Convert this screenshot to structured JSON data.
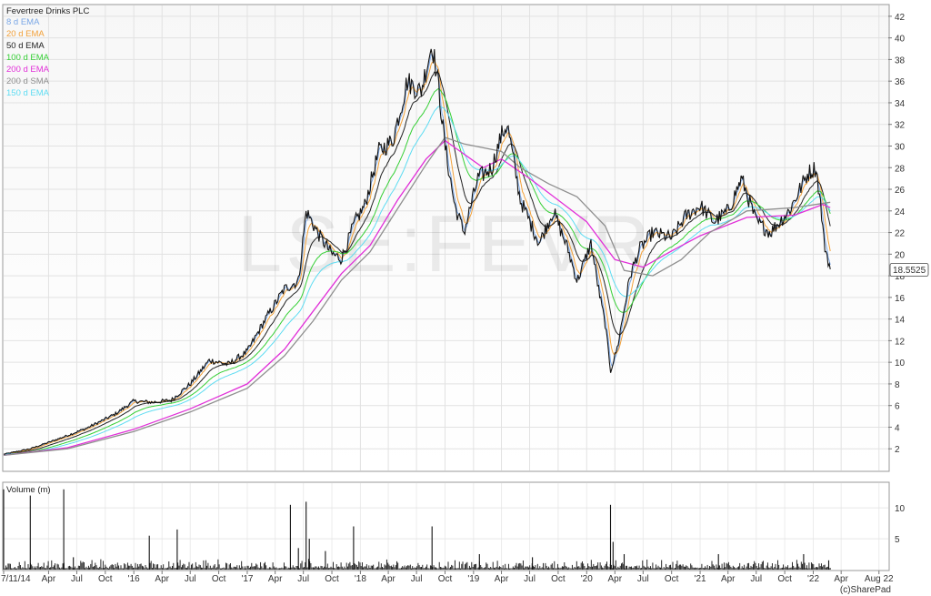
{
  "chart_data": [
    {
      "type": "line",
      "title": "Fevertree Drinks PLC",
      "watermark": "LSE:FEVR",
      "ylim": [
        0,
        43
      ],
      "y_ticks": [
        "2",
        "4",
        "6",
        "8",
        "10",
        "12",
        "14",
        "16",
        "18",
        "20",
        "22",
        "24",
        "26",
        "28",
        "30",
        "32",
        "34",
        "36",
        "38",
        "40",
        "42"
      ],
      "last_price_label": "18.5525",
      "last_price": 18.5525,
      "grid": true,
      "legend_position": "top-left",
      "legend": [
        {
          "label": "8 d EMA",
          "color": "#7aa7e6"
        },
        {
          "label": "20 d EMA",
          "color": "#f2a13a"
        },
        {
          "label": "50 d EMA",
          "color": "#222222"
        },
        {
          "label": "100 d EMA",
          "color": "#35cf35"
        },
        {
          "label": "200 d EMA",
          "color": "#e12fd8"
        },
        {
          "label": "200 d SMA",
          "color": "#8f8f8f"
        },
        {
          "label": "150 d EMA",
          "color": "#5ddcf2"
        }
      ],
      "x_ticks": [
        "7/11/14",
        "Apr",
        "Jul",
        "Oct",
        "'16",
        "Apr",
        "Jul",
        "Oct",
        "'17",
        "Apr",
        "Jul",
        "Oct",
        "'18",
        "Apr",
        "Jul",
        "Oct",
        "'19",
        "Apr",
        "Jul",
        "Oct",
        "'20",
        "Apr",
        "Jul",
        "Oct",
        "'21",
        "Apr",
        "Jul",
        "Oct",
        "'22",
        "Apr",
        "Aug 22"
      ],
      "x_range": [
        "2014-11-07",
        "2022-08-31"
      ],
      "series": [
        {
          "name": "Fevertree Drinks PLC",
          "color": "#111111",
          "points": [
            [
              "2014-11-07",
              1.5
            ],
            [
              "2015-02-01",
              2.0
            ],
            [
              "2015-05-01",
              2.9
            ],
            [
              "2015-08-01",
              3.9
            ],
            [
              "2015-11-01",
              5.2
            ],
            [
              "2015-12-31",
              6.4
            ],
            [
              "2016-03-01",
              6.3
            ],
            [
              "2016-05-01",
              6.5
            ],
            [
              "2016-07-01",
              8.0
            ],
            [
              "2016-09-01",
              10.2
            ],
            [
              "2016-11-01",
              9.8
            ],
            [
              "2017-01-01",
              11.0
            ],
            [
              "2017-03-01",
              14.0
            ],
            [
              "2017-05-01",
              16.8
            ],
            [
              "2017-06-15",
              17.5
            ],
            [
              "2017-07-10",
              24.0
            ],
            [
              "2017-08-15",
              22.0
            ],
            [
              "2017-10-01",
              20.0
            ],
            [
              "2017-11-01",
              19.6
            ],
            [
              "2017-12-15",
              23.0
            ],
            [
              "2018-01-15",
              24.5
            ],
            [
              "2018-03-01",
              29.5
            ],
            [
              "2018-04-15",
              30.5
            ],
            [
              "2018-06-01",
              36.0
            ],
            [
              "2018-07-15",
              35.0
            ],
            [
              "2018-08-20",
              39.5
            ],
            [
              "2018-09-10",
              35.5
            ],
            [
              "2018-10-01",
              30.0
            ],
            [
              "2018-11-01",
              24.5
            ],
            [
              "2018-12-01",
              22.0
            ],
            [
              "2019-01-15",
              27.0
            ],
            [
              "2019-03-01",
              28.0
            ],
            [
              "2019-04-01",
              31.0
            ],
            [
              "2019-04-20",
              32.0
            ],
            [
              "2019-06-01",
              25.0
            ],
            [
              "2019-08-01",
              21.0
            ],
            [
              "2019-09-15",
              24.0
            ],
            [
              "2019-11-01",
              20.5
            ],
            [
              "2019-12-01",
              17.5
            ],
            [
              "2020-01-15",
              21.0
            ],
            [
              "2020-02-10",
              16.5
            ],
            [
              "2020-03-01",
              13.5
            ],
            [
              "2020-03-18",
              9.2
            ],
            [
              "2020-04-10",
              11.5
            ],
            [
              "2020-05-20",
              18.0
            ],
            [
              "2020-06-20",
              20.5
            ],
            [
              "2020-08-01",
              22.0
            ],
            [
              "2020-10-01",
              21.5
            ],
            [
              "2020-11-15",
              23.5
            ],
            [
              "2021-01-01",
              24.5
            ],
            [
              "2021-02-15",
              23.0
            ],
            [
              "2021-04-01",
              24.0
            ],
            [
              "2021-05-15",
              27.0
            ],
            [
              "2021-07-01",
              23.0
            ],
            [
              "2021-08-15",
              22.0
            ],
            [
              "2021-10-15",
              24.0
            ],
            [
              "2021-12-15",
              27.5
            ],
            [
              "2022-01-10",
              28.0
            ],
            [
              "2022-01-25",
              24.5
            ],
            [
              "2022-02-05",
              21.0
            ],
            [
              "2022-02-25",
              18.6
            ]
          ]
        },
        {
          "name": "200 d EMA",
          "color": "#e12fd8",
          "points": [
            [
              "2014-11-07",
              1.4
            ],
            [
              "2015-06-01",
              2.1
            ],
            [
              "2016-01-01",
              3.8
            ],
            [
              "2016-07-01",
              5.7
            ],
            [
              "2017-01-01",
              8.0
            ],
            [
              "2017-05-01",
              11.2
            ],
            [
              "2017-08-01",
              14.7
            ],
            [
              "2017-11-01",
              18.2
            ],
            [
              "2018-02-01",
              20.8
            ],
            [
              "2018-05-01",
              25.0
            ],
            [
              "2018-08-01",
              28.8
            ],
            [
              "2018-10-01",
              30.5
            ],
            [
              "2019-02-01",
              28.0
            ],
            [
              "2019-04-01",
              28.8
            ],
            [
              "2019-07-01",
              27.0
            ],
            [
              "2019-10-01",
              25.0
            ],
            [
              "2020-01-01",
              23.0
            ],
            [
              "2020-04-01",
              19.5
            ],
            [
              "2020-07-01",
              18.8
            ],
            [
              "2020-10-01",
              20.3
            ],
            [
              "2021-01-01",
              21.7
            ],
            [
              "2021-06-01",
              23.4
            ],
            [
              "2021-11-01",
              23.6
            ],
            [
              "2022-02-01",
              24.6
            ],
            [
              "2022-02-25",
              24.3
            ]
          ]
        },
        {
          "name": "200 d SMA",
          "color": "#8f8f8f",
          "points": [
            [
              "2014-11-07",
              1.4
            ],
            [
              "2015-06-01",
              2.0
            ],
            [
              "2016-01-01",
              3.6
            ],
            [
              "2016-07-01",
              5.4
            ],
            [
              "2017-01-01",
              7.6
            ],
            [
              "2017-05-01",
              10.6
            ],
            [
              "2017-08-01",
              13.8
            ],
            [
              "2017-11-01",
              17.6
            ],
            [
              "2018-02-01",
              20.2
            ],
            [
              "2018-05-01",
              24.2
            ],
            [
              "2018-08-01",
              28.3
            ],
            [
              "2018-10-01",
              30.8
            ],
            [
              "2018-12-01",
              30.2
            ],
            [
              "2019-04-01",
              29.5
            ],
            [
              "2019-06-01",
              28.0
            ],
            [
              "2019-09-01",
              26.5
            ],
            [
              "2019-12-01",
              25.3
            ],
            [
              "2020-03-01",
              22.6
            ],
            [
              "2020-05-01",
              18.5
            ],
            [
              "2020-08-01",
              18.0
            ],
            [
              "2020-11-01",
              19.5
            ],
            [
              "2021-02-01",
              22.0
            ],
            [
              "2021-06-01",
              24.0
            ],
            [
              "2021-11-01",
              24.3
            ],
            [
              "2022-02-25",
              24.8
            ]
          ]
        }
      ]
    },
    {
      "type": "bar",
      "title": "Volume (m)",
      "ylim": [
        0,
        14
      ],
      "y_ticks": [
        "5",
        "10"
      ],
      "copyright": "(c)SharePad",
      "spikes": [
        [
          "2014-11-07",
          13
        ],
        [
          "2015-02-01",
          12
        ],
        [
          "2015-05-20",
          13
        ],
        [
          "2015-06-20",
          2
        ],
        [
          "2016-02-20",
          5.5
        ],
        [
          "2016-05-20",
          6.5
        ],
        [
          "2017-05-20",
          10.5
        ],
        [
          "2017-06-15",
          3.5
        ],
        [
          "2017-07-10",
          11
        ],
        [
          "2017-07-20",
          5
        ],
        [
          "2017-09-10",
          3
        ],
        [
          "2017-12-10",
          7
        ],
        [
          "2018-08-20",
          7
        ],
        [
          "2019-01-20",
          2.5
        ],
        [
          "2019-07-10",
          2
        ],
        [
          "2020-03-18",
          10.5
        ],
        [
          "2020-03-26",
          4.5
        ],
        [
          "2020-05-01",
          2.5
        ],
        [
          "2021-03-01",
          2.5
        ],
        [
          "2021-12-01",
          2.5
        ],
        [
          "2022-02-20",
          1.5
        ]
      ]
    }
  ]
}
